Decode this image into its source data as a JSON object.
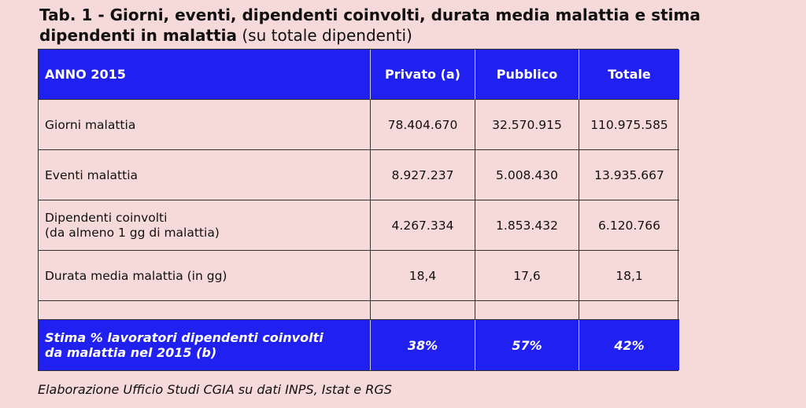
{
  "header": {
    "title": "Tab. 1 - Giorni, eventi, dipendenti coinvolti, durata media malattia e stima dipendenti in malattia",
    "note": "(su totale dipendenti)"
  },
  "table": {
    "columns": [
      "ANNO 2015",
      "Privato (a)",
      "Pubblico",
      "Totale"
    ],
    "rows": [
      {
        "label": [
          "Giorni malattia"
        ],
        "values": [
          "78.404.670",
          "32.570.915",
          "110.975.585"
        ]
      },
      {
        "label": [
          "Eventi malattia"
        ],
        "values": [
          "8.927.237",
          "5.008.430",
          "13.935.667"
        ]
      },
      {
        "label": [
          "Dipendenti coinvolti",
          "(da almeno 1 gg di malattia)"
        ],
        "values": [
          "4.267.334",
          "1.853.432",
          "6.120.766"
        ]
      },
      {
        "label": [
          "Durata media malattia (in gg)"
        ],
        "values": [
          "18,4",
          "17,6",
          "18,1"
        ]
      }
    ],
    "summary": {
      "label": [
        "Stima % lavoratori dipendenti coinvolti",
        "da malattia nel 2015 (b)"
      ],
      "values": [
        "38%",
        "57%",
        "42%"
      ]
    }
  },
  "footer": {
    "source": "Elaborazione Ufficio Studi CGIA su dati INPS, Istat e RGS"
  }
}
